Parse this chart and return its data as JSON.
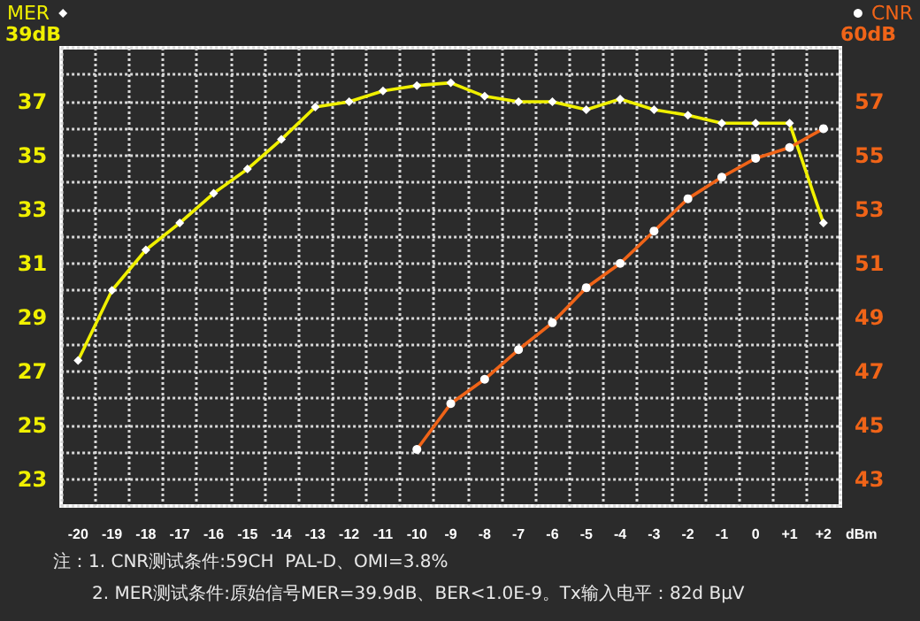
{
  "chart_data": {
    "type": "line",
    "categories": [
      "-20",
      "-19",
      "-18",
      "-17",
      "-16",
      "-15",
      "-14",
      "-13",
      "-12",
      "-11",
      "-10",
      "-9",
      "-8",
      "-7",
      "-6",
      "-5",
      "-4",
      "-3",
      "-2",
      "-1",
      "0",
      "+1",
      "+2"
    ],
    "xlabel": "dBm",
    "series": [
      {
        "name": "MER",
        "color": "#f0f000",
        "marker": "diamond",
        "values": [
          27.4,
          30.0,
          31.5,
          32.5,
          33.6,
          34.5,
          35.6,
          36.8,
          37.0,
          37.4,
          37.6,
          37.7,
          37.2,
          37.0,
          37.0,
          36.7,
          37.1,
          36.7,
          36.5,
          36.2,
          36.2,
          36.2,
          32.5
        ]
      },
      {
        "name": "CNR",
        "color": "#f06418",
        "marker": "circle",
        "axis": "y2",
        "values": [
          null,
          null,
          null,
          null,
          null,
          null,
          null,
          null,
          null,
          null,
          44.1,
          45.8,
          46.7,
          47.8,
          48.8,
          50.1,
          51.0,
          52.2,
          53.4,
          54.2,
          54.9,
          55.3,
          56.0
        ]
      }
    ],
    "ylim": [
      22,
      39
    ],
    "yticks": [
      23,
      25,
      27,
      29,
      31,
      33,
      35,
      37
    ],
    "ylabel": "39dB",
    "y2lim": [
      42,
      59
    ],
    "y2ticks": [
      43,
      45,
      47,
      49,
      51,
      53,
      55,
      57
    ],
    "y2label": "60dB",
    "grid": true,
    "legend": "top",
    "annotations": [
      "注：1. CNR测试条件:59CH  PAL-D、OMI=3.8%",
      "2. MER测试条件:原始信号MER=39.9dB、BER<1.0E-9。Tx输入电平：82d BμV"
    ]
  }
}
